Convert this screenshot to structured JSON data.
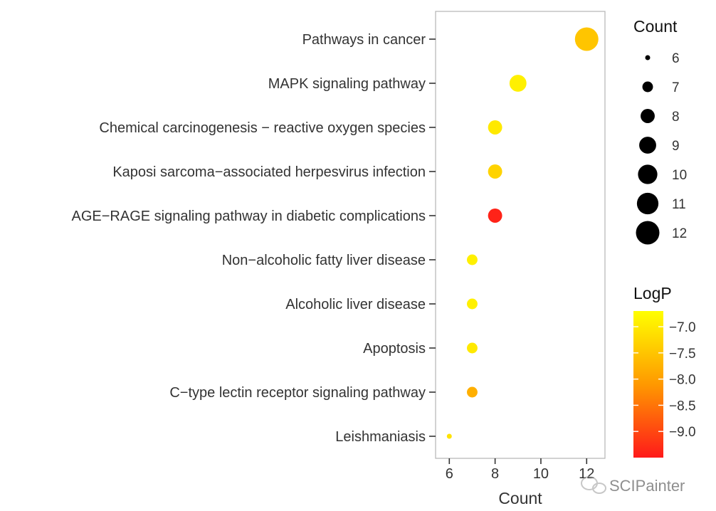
{
  "chart_data": {
    "type": "scatter",
    "xlabel": "Count",
    "xlim": [
      5.4,
      12.8
    ],
    "xticks": [
      6,
      8,
      10,
      12
    ],
    "categories": [
      "Pathways in cancer",
      "MAPK signaling pathway",
      "Chemical carcinogenesis − reactive oxygen species",
      "Kaposi sarcoma−associated herpesvirus infection",
      "AGE−RAGE signaling pathway in diabetic complications",
      "Non−alcoholic fatty liver disease",
      "Alcoholic liver disease",
      "Apoptosis",
      "C−type lectin receptor signaling pathway",
      "Leishmaniasis"
    ],
    "points": [
      {
        "term": "Pathways in cancer",
        "count": 12,
        "logp": -7.5
      },
      {
        "term": "MAPK signaling pathway",
        "count": 9,
        "logp": -6.9
      },
      {
        "term": "Chemical carcinogenesis − reactive oxygen species",
        "count": 8,
        "logp": -7.0
      },
      {
        "term": "Kaposi sarcoma−associated herpesvirus infection",
        "count": 8,
        "logp": -7.3
      },
      {
        "term": "AGE−RAGE signaling pathway in diabetic complications",
        "count": 8,
        "logp": -9.4
      },
      {
        "term": "Non−alcoholic fatty liver disease",
        "count": 7,
        "logp": -6.9
      },
      {
        "term": "Alcoholic liver disease",
        "count": 7,
        "logp": -6.9
      },
      {
        "term": "Apoptosis",
        "count": 7,
        "logp": -7.0
      },
      {
        "term": "C−type lectin receptor signaling pathway",
        "count": 7,
        "logp": -7.8
      },
      {
        "term": "Leishmaniasis",
        "count": 6,
        "logp": -7.1
      }
    ],
    "size_legend": {
      "title": "Count",
      "values": [
        6,
        7,
        8,
        9,
        10,
        11,
        12
      ]
    },
    "color_legend": {
      "title": "LogP",
      "range": [
        -9.5,
        -6.7
      ],
      "ticks": [
        -7.0,
        -7.5,
        -8.0,
        -8.5,
        -9.0
      ],
      "tick_labels": [
        "−7.0",
        "−7.5",
        "−8.0",
        "−8.5",
        "−9.0"
      ],
      "colors": {
        "low": "#ff1a1a",
        "mid": "#ff9900",
        "high": "#ffff00"
      }
    },
    "grid": false
  },
  "watermark": "SCIPainter"
}
